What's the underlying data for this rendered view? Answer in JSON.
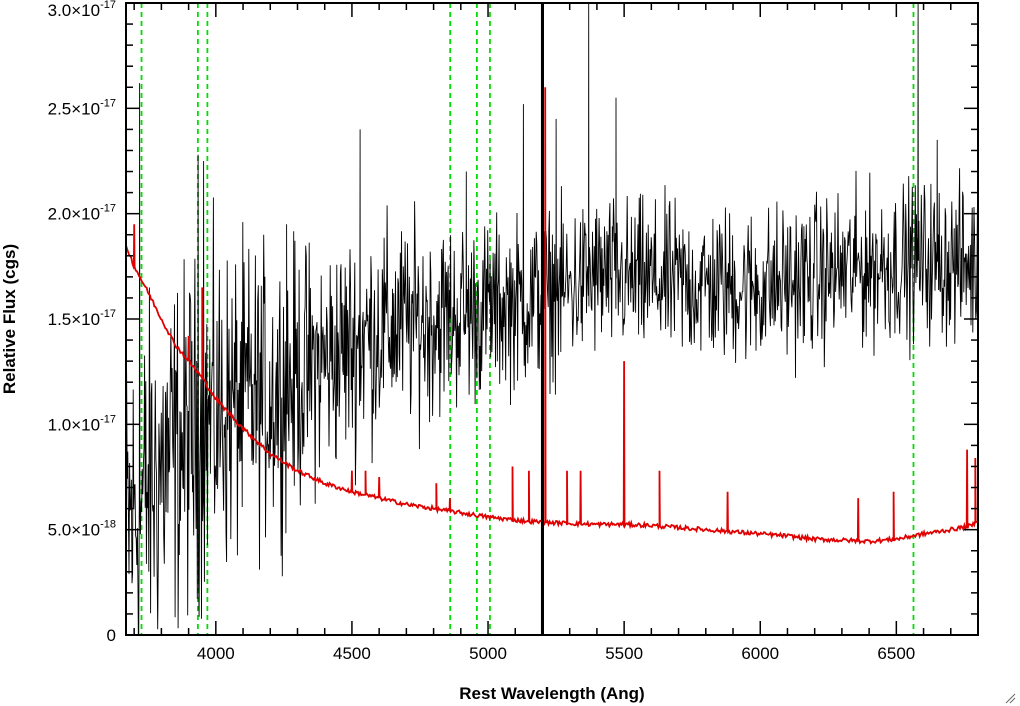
{
  "chart_data": {
    "type": "line",
    "xlabel": "Rest Wavelength (Ang)",
    "ylabel": "Relative Flux (cgs)",
    "xlim": [
      3670,
      6800
    ],
    "ylim": [
      0,
      3e-17
    ],
    "x_ticks": [
      4000,
      4500,
      5000,
      5500,
      6000,
      6500
    ],
    "x_tick_labels": [
      "4000",
      "4500",
      "5000",
      "5500",
      "6000",
      "6500"
    ],
    "y_ticks": [
      0,
      5e-18,
      1e-17,
      1.5e-17,
      2e-17,
      2.5e-17,
      3e-17
    ],
    "y_tick_labels": [
      {
        "mantissa": "0",
        "exp": ""
      },
      {
        "mantissa": "5.0×10",
        "exp": "-18"
      },
      {
        "mantissa": "1.0×10",
        "exp": "-17"
      },
      {
        "mantissa": "1.5×10",
        "exp": "-17"
      },
      {
        "mantissa": "2.0×10",
        "exp": "-17"
      },
      {
        "mantissa": "2.5×10",
        "exp": "-17"
      },
      {
        "mantissa": "3.0×10",
        "exp": "-17"
      }
    ],
    "grid": false,
    "series": [
      {
        "color": "#000000",
        "style": "noisy-spectrum",
        "continuum_x": [
          3670,
          3800,
          4000,
          4200,
          4400,
          4600,
          4800,
          5000,
          5200,
          5400,
          5600,
          5800,
          6000,
          6200,
          6400,
          6600,
          6800
        ],
        "continuum_y": [
          5e-18,
          8e-18,
          1.05e-17,
          1.15e-17,
          1.3e-17,
          1.45e-17,
          1.5e-17,
          1.55e-17,
          1.6e-17,
          1.7e-17,
          1.68e-17,
          1.66e-17,
          1.65e-17,
          1.7e-17,
          1.75e-17,
          1.78e-17,
          1.75e-17
        ],
        "noise_x": [
          3670,
          4000,
          4400,
          5000,
          5500,
          6000,
          6800
        ],
        "noise_y": [
          1.2e-17,
          1.05e-17,
          7.5e-18,
          5.5e-18,
          5e-18,
          5e-18,
          5e-18
        ],
        "spikes": [
          {
            "x": 3720,
            "y": 2.62e-17
          },
          {
            "x": 3935,
            "y": 2.28e-17
          },
          {
            "x": 3955,
            "y": 2.25e-17
          },
          {
            "x": 4260,
            "y": 1.95e-17
          },
          {
            "x": 4530,
            "y": 2.4e-17
          },
          {
            "x": 4920,
            "y": 2.2e-17
          },
          {
            "x": 5130,
            "y": 2.52e-17
          },
          {
            "x": 5250,
            "y": 2.45e-17
          },
          {
            "x": 5370,
            "y": 3e-17
          },
          {
            "x": 5470,
            "y": 2.55e-17
          },
          {
            "x": 6580,
            "y": 3e-17
          },
          {
            "x": 6650,
            "y": 2.35e-17
          }
        ]
      },
      {
        "color": "#e00000",
        "style": "model-continuum",
        "x": [
          3670,
          3700,
          3750,
          3800,
          3850,
          3900,
          3950,
          4000,
          4100,
          4200,
          4300,
          4400,
          4500,
          4600,
          4700,
          4800,
          4900,
          5000,
          5100,
          5200,
          5300,
          5400,
          5500,
          5600,
          5700,
          5800,
          5900,
          6000,
          6100,
          6200,
          6300,
          6400,
          6500,
          6600,
          6700,
          6780,
          6800
        ],
        "y": [
          1.85e-17,
          1.75e-17,
          1.63e-17,
          1.5e-17,
          1.38e-17,
          1.3e-17,
          1.22e-17,
          1.12e-17,
          9.8e-18,
          8.6e-18,
          7.8e-18,
          7.2e-18,
          6.8e-18,
          6.5e-18,
          6.2e-18,
          6e-18,
          5.8e-18,
          5.6e-18,
          5.45e-18,
          5.35e-18,
          5.3e-18,
          5.25e-18,
          5.25e-18,
          5.2e-18,
          5.1e-18,
          5e-18,
          4.9e-18,
          4.8e-18,
          4.7e-18,
          4.55e-18,
          4.5e-18,
          4.45e-18,
          4.55e-18,
          4.8e-18,
          5e-18,
          5.2e-18,
          5.5e-18
        ],
        "emission_lines": [
          {
            "x": 3700,
            "peak": 1.95e-17
          },
          {
            "x": 3900,
            "peak": 1.42e-17
          },
          {
            "x": 3950,
            "peak": 1.65e-17
          },
          {
            "x": 4500,
            "peak": 7.8e-18
          },
          {
            "x": 4550,
            "peak": 7.8e-18
          },
          {
            "x": 4600,
            "peak": 7.5e-18
          },
          {
            "x": 4810,
            "peak": 7.2e-18
          },
          {
            "x": 4860,
            "peak": 6.5e-18
          },
          {
            "x": 5090,
            "peak": 8e-18
          },
          {
            "x": 5150,
            "peak": 7.8e-18
          },
          {
            "x": 5210,
            "peak": 2.6e-17
          },
          {
            "x": 5290,
            "peak": 7.8e-18
          },
          {
            "x": 5340,
            "peak": 7.8e-18
          },
          {
            "x": 5500,
            "peak": 1.3e-17
          },
          {
            "x": 5630,
            "peak": 7.8e-18
          },
          {
            "x": 5880,
            "peak": 6.8e-18
          },
          {
            "x": 6360,
            "peak": 6.5e-18
          },
          {
            "x": 6490,
            "peak": 6.8e-18
          },
          {
            "x": 6760,
            "peak": 8.8e-18
          },
          {
            "x": 6790,
            "peak": 8.4e-18
          }
        ]
      }
    ],
    "vertical_markers": [
      {
        "x": 3727,
        "color": "#00dd00",
        "style": "dashed"
      },
      {
        "x": 3934,
        "color": "#00dd00",
        "style": "dashed"
      },
      {
        "x": 3969,
        "color": "#00dd00",
        "style": "dashed"
      },
      {
        "x": 4861,
        "color": "#00dd00",
        "style": "dashed"
      },
      {
        "x": 4959,
        "color": "#00dd00",
        "style": "dashed"
      },
      {
        "x": 5007,
        "color": "#00dd00",
        "style": "dashed"
      },
      {
        "x": 6563,
        "color": "#00dd00",
        "style": "dashed"
      },
      {
        "x": 5200,
        "color": "#000000",
        "style": "solid"
      }
    ]
  },
  "ui": {
    "resize_grip_icon": "resize-grip-icon"
  }
}
